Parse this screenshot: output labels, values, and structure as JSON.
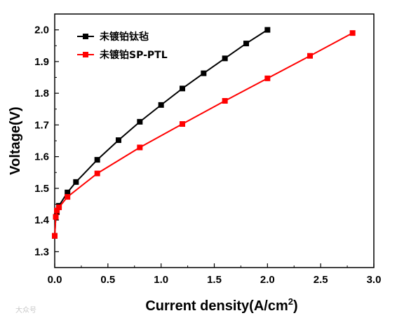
{
  "chart_data": {
    "type": "line",
    "xlabel": "Current density(A/cm",
    "xlabel_sup": "2",
    "xlabel_end": ")",
    "ylabel": "Voltage(V)",
    "xlim": [
      0.0,
      3.0
    ],
    "ylim": [
      1.25,
      2.05
    ],
    "xticks": [
      "0.0",
      "0.5",
      "1.0",
      "1.5",
      "2.0",
      "2.5",
      "3.0"
    ],
    "yticks": [
      "1.3",
      "1.4",
      "1.5",
      "1.6",
      "1.7",
      "1.8",
      "1.9",
      "2.0"
    ],
    "grid": false,
    "legend_position": "top-left",
    "series": [
      {
        "name": "未镀铂钛毡",
        "color": "#000000",
        "marker": "square",
        "x": [
          0.0,
          0.01,
          0.02,
          0.04,
          0.12,
          0.2,
          0.4,
          0.6,
          0.8,
          1.0,
          1.2,
          1.4,
          1.6,
          1.8,
          2.0
        ],
        "y": [
          1.35,
          1.41,
          1.425,
          1.445,
          1.487,
          1.52,
          1.59,
          1.652,
          1.71,
          1.763,
          1.815,
          1.863,
          1.91,
          1.957,
          2.0
        ]
      },
      {
        "name": "未镀铂SP-PTL",
        "color": "#ff0000",
        "marker": "square",
        "x": [
          0.0,
          0.01,
          0.02,
          0.04,
          0.12,
          0.4,
          0.8,
          1.2,
          1.6,
          2.0,
          2.4,
          2.8
        ],
        "y": [
          1.35,
          1.41,
          1.43,
          1.44,
          1.473,
          1.547,
          1.629,
          1.703,
          1.776,
          1.847,
          1.918,
          1.99
        ]
      }
    ]
  },
  "watermark": "大众号"
}
